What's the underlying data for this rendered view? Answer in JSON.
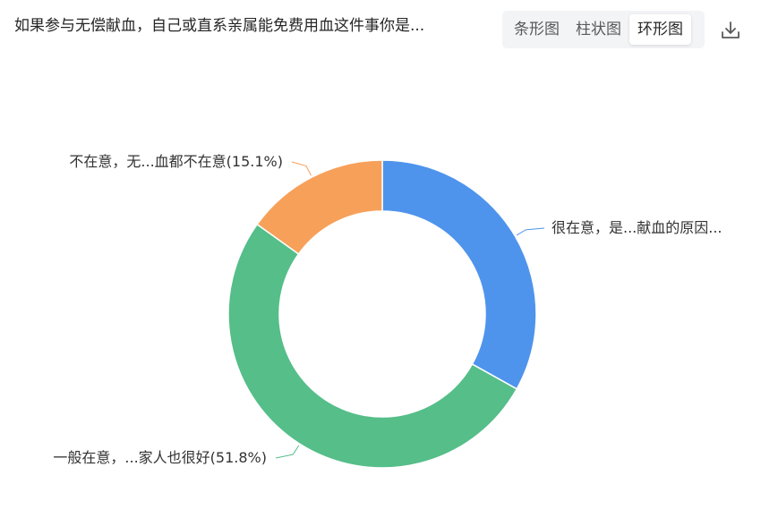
{
  "header": {
    "title": "如果参与无偿献血，自己或直系亲属能免费用血这件事你是...",
    "tabs": [
      {
        "label": "条形图",
        "active": false
      },
      {
        "label": "柱状图",
        "active": false
      },
      {
        "label": "环形图",
        "active": true
      }
    ],
    "download_icon": "download-icon"
  },
  "chart_data": {
    "type": "pie",
    "variant": "donut",
    "title": "",
    "slices": [
      {
        "label": "很在意，是...献血的原因...",
        "value": 33.1,
        "color": "#4e94ec"
      },
      {
        "label": "一般在意，...家人也很好(51.8%)",
        "value": 51.8,
        "color": "#55be89"
      },
      {
        "label": "不在意，无...血都不在意(15.1%)",
        "value": 15.1,
        "color": "#f7a05a"
      }
    ]
  }
}
